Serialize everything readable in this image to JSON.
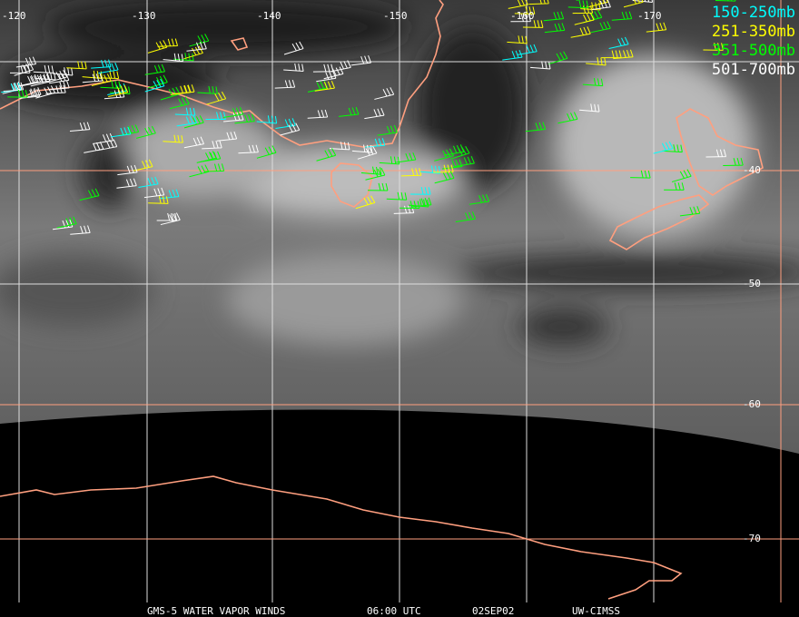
{
  "footer": {
    "satellite": "GMS-5 WATER VAPOR WINDS",
    "time": "06:00 UTC",
    "date": "02SEP02",
    "credit": "UW-CIMSS"
  },
  "legend": [
    {
      "label": "150-250mb",
      "color": "#00ffff"
    },
    {
      "label": "251-350mb",
      "color": "#ffff00"
    },
    {
      "label": "351-500mb",
      "color": "#00ff00"
    },
    {
      "label": "501-700mb",
      "color": "#ffffff"
    }
  ],
  "longitude_labels": [
    "-120",
    "-130",
    "-140",
    "-150",
    "-160",
    "-170"
  ],
  "latitude_labels": [
    "-40",
    "-50",
    "-60",
    "-70"
  ],
  "colors": {
    "coastline": "#ff9f7f",
    "grid_white": "#ffffff",
    "grid_orange": "#ff9f7f"
  }
}
